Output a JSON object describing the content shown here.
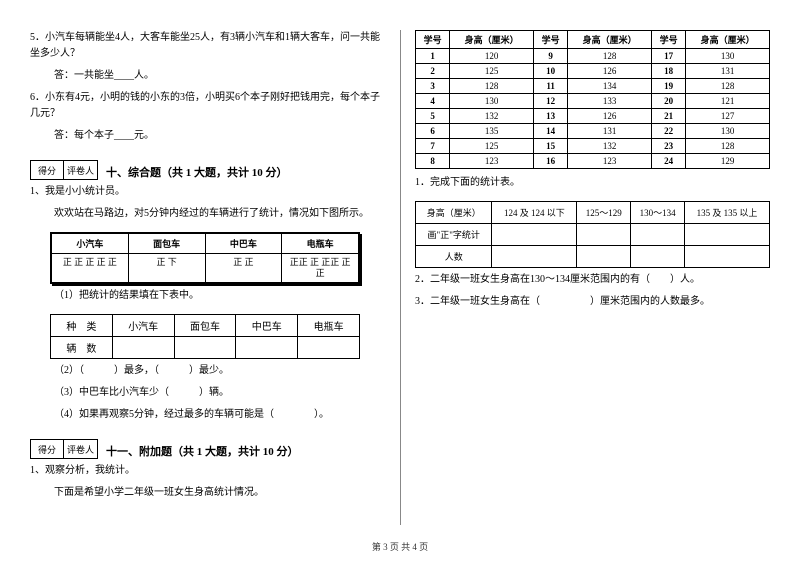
{
  "left": {
    "q5": "5．小汽车每辆能坐4人，大客车能坐25人，有3辆小汽车和1辆大客车，问一共能坐多少人？",
    "q5ans": "答：一共能坐____人。",
    "q6": "6．小东有4元，小明的钱的小东的3倍，小明买6个本子刚好把钱用完，每个本子几元？",
    "q6ans": "答：每个本子____元。",
    "score_l": "得分",
    "score_r": "评卷人",
    "section10": "十、综合题（共 1 大题，共计 10 分）",
    "s10_1": "1、我是小小统计员。",
    "s10_1b": "欢欢站在马路边，对5分钟内经过的车辆进行了统计，情况如下图所示。",
    "tally_h": [
      "小汽车",
      "面包车",
      "中巴车",
      "电瓶车"
    ],
    "tally_v": [
      "正 正\n正 正\n正",
      "正\n下",
      "正\n正",
      "正正 正\n正正\n正正"
    ],
    "s10_1_1": "（1）把统计的结果填在下表中。",
    "res_h": [
      "种　类",
      "小汽车",
      "面包车",
      "中巴车",
      "电瓶车"
    ],
    "res_r": "辆　数",
    "s10_1_2": "（2）（　　　）最多，（　　　）最少。",
    "s10_1_3": "（3）中巴车比小汽车少（　　　）辆。",
    "s10_1_4": "（4）如果再观察5分钟，经过最多的车辆可能是（　　　　）。",
    "section11": "十一、附加题（共 1 大题，共计 10 分）",
    "s11_1": "1、观察分析，我统计。",
    "s11_1b": "下面是希望小学二年级一班女生身高统计情况。"
  },
  "right": {
    "hh": [
      "学号",
      "身高（厘米）",
      "学号",
      "身高（厘米）",
      "学号",
      "身高（厘米）"
    ],
    "rows": [
      [
        "1",
        "120",
        "9",
        "128",
        "17",
        "130"
      ],
      [
        "2",
        "125",
        "10",
        "126",
        "18",
        "131"
      ],
      [
        "3",
        "128",
        "11",
        "134",
        "19",
        "128"
      ],
      [
        "4",
        "130",
        "12",
        "133",
        "20",
        "121"
      ],
      [
        "5",
        "132",
        "13",
        "126",
        "21",
        "127"
      ],
      [
        "6",
        "135",
        "14",
        "131",
        "22",
        "130"
      ],
      [
        "7",
        "125",
        "15",
        "132",
        "23",
        "128"
      ],
      [
        "8",
        "123",
        "16",
        "123",
        "24",
        "129"
      ]
    ],
    "r1": "1．完成下面的统计表。",
    "stat_h": [
      "身高（厘米）",
      "124 及 124 以下",
      "125～129",
      "130～134",
      "135 及 135 以上"
    ],
    "stat_r1": "画\"正\"字统计",
    "stat_r2": "人数",
    "r2": "2．二年级一班女生身高在130～134厘米范围内的有（　　）人。",
    "r3": "3．二年级一班女生身高在（　　　　　）厘米范围内的人数最多。"
  },
  "footer": "第 3 页  共 4 页"
}
